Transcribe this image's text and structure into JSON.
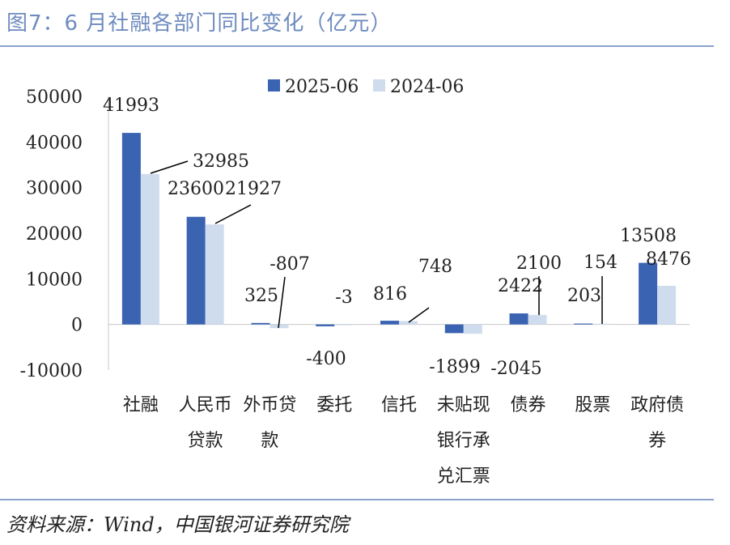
{
  "title": "图7：6 月社融各部门同比变化（亿元）",
  "source": "资料来源：Wind，中国银河证券研究院",
  "chart_data": {
    "type": "bar",
    "title": "",
    "xlabel": "",
    "ylabel": "",
    "ylim": [
      -10000,
      50000
    ],
    "yticks": [
      -10000,
      0,
      10000,
      20000,
      30000,
      40000,
      50000
    ],
    "ytick_labels": [
      "-10000",
      "0",
      "10000",
      "20000",
      "30000",
      "40000",
      "50000"
    ],
    "categories": [
      [
        "社融"
      ],
      [
        "人民币",
        "贷款"
      ],
      [
        "外币贷",
        "款"
      ],
      [
        "委托"
      ],
      [
        "信托"
      ],
      [
        "未贴现",
        "银行承",
        "兑汇票"
      ],
      [
        "债券"
      ],
      [
        "股票"
      ],
      [
        "政府债",
        "券"
      ]
    ],
    "series": [
      {
        "name": "2025-06",
        "color": "#3a63b2",
        "values": [
          41993,
          23600,
          325,
          -400,
          816,
          -1899,
          2422,
          203,
          13508
        ],
        "labels": [
          "41993",
          "23600",
          "325",
          "-400",
          "816",
          "-1899",
          "2422",
          "203",
          "13508"
        ]
      },
      {
        "name": "2024-06",
        "color": "#cfdcee",
        "values": [
          32985,
          21927,
          -807,
          -3,
          748,
          -2045,
          2100,
          154,
          8476
        ],
        "labels": [
          "32985",
          "21927",
          "-807",
          "-3",
          "748",
          "-2045",
          "2100",
          "154",
          "8476"
        ]
      }
    ],
    "grid": false,
    "legend": "top-center"
  }
}
